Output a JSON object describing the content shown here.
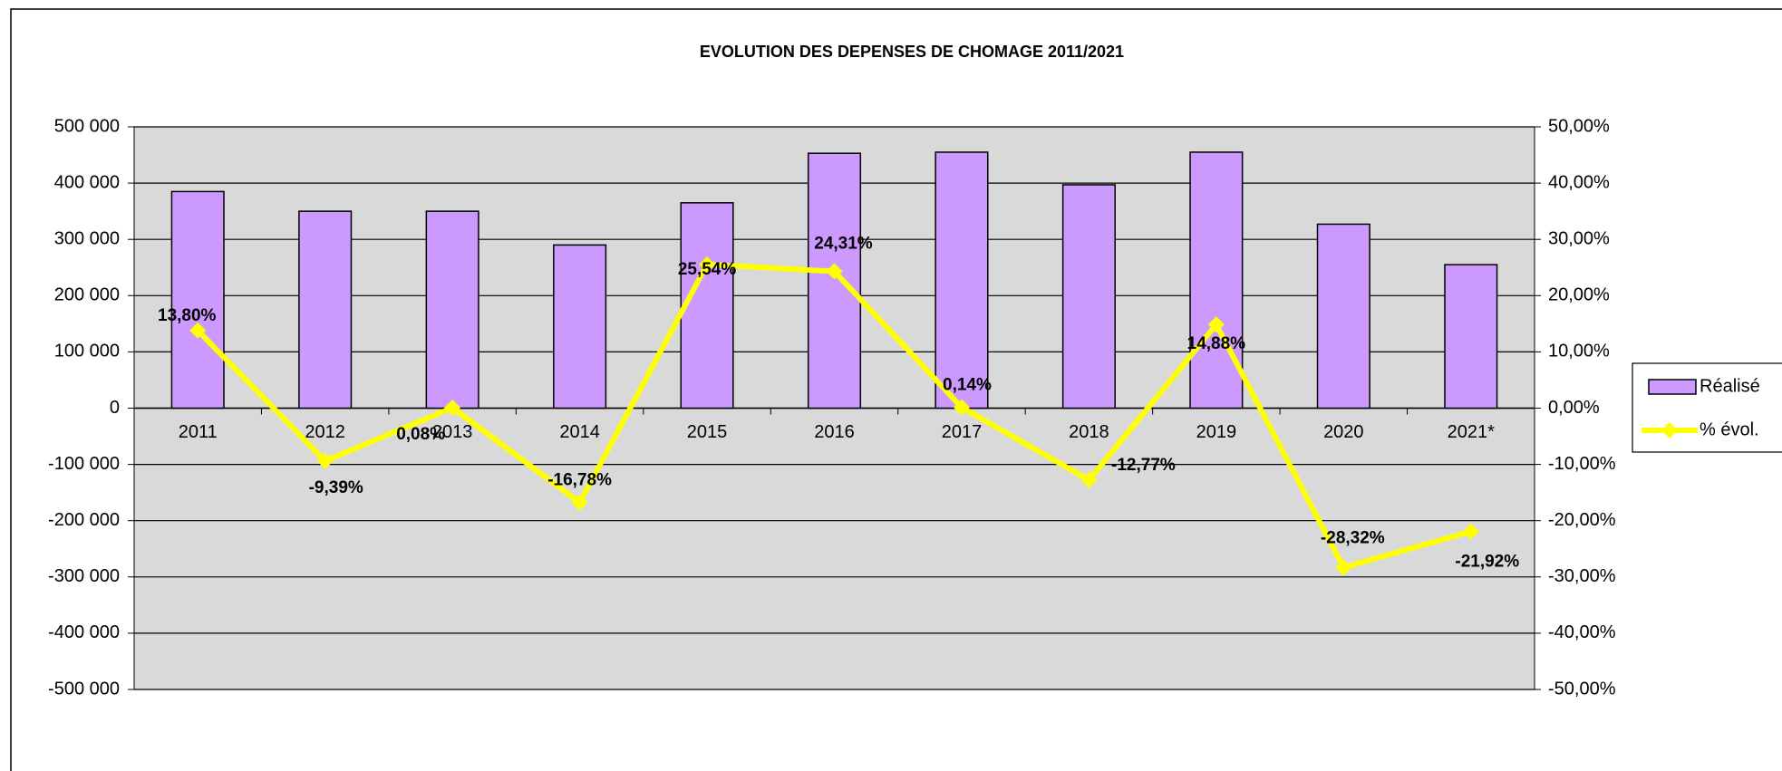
{
  "chart_data": {
    "type": "bar",
    "title": "EVOLUTION DES DEPENSES DE CHOMAGE 2011/2021",
    "categories": [
      "2011",
      "2012",
      "2013",
      "2014",
      "2015",
      "2016",
      "2017",
      "2018",
      "2019",
      "2020",
      "2021*"
    ],
    "series": [
      {
        "name": "Réalisé",
        "type": "bar",
        "color": "#cc99ff",
        "values": [
          385000,
          350000,
          350000,
          290000,
          365000,
          453000,
          455000,
          397000,
          455000,
          327000,
          255000
        ]
      },
      {
        "name": "% évol.",
        "type": "line",
        "axis": "y2",
        "color": "#ffff00",
        "values": [
          13.8,
          -9.39,
          0.08,
          -16.78,
          25.54,
          24.31,
          0.14,
          -12.77,
          14.88,
          -28.32,
          -21.92
        ],
        "value_labels": [
          "13,80%",
          "-9,39%",
          "0,08%",
          "-16,78%",
          "25,54%",
          "24,31%",
          "0,14%",
          "-12,77%",
          "14,88%",
          "-28,32%",
          "-21,92%"
        ]
      }
    ],
    "ylim": [
      -500000,
      500000
    ],
    "yticks": [
      {
        "value": -500000,
        "label": "-500 000"
      },
      {
        "value": -400000,
        "label": "-400 000"
      },
      {
        "value": -300000,
        "label": "-300 000"
      },
      {
        "value": -200000,
        "label": "-200 000"
      },
      {
        "value": -100000,
        "label": "-100 000"
      },
      0,
      {
        "value": 100000,
        "label": "100 000"
      },
      {
        "value": 200000,
        "label": "200 000"
      },
      {
        "value": 300000,
        "label": "300 000"
      },
      {
        "value": 400000,
        "label": "400 000"
      },
      {
        "value": 500000,
        "label": "500 000"
      }
    ],
    "y2lim": [
      -50,
      50
    ],
    "y2ticks": [
      {
        "value": -50,
        "label": "-50,00%"
      },
      {
        "value": -40,
        "label": "-40,00%"
      },
      {
        "value": -30,
        "label": "-30,00%"
      },
      {
        "value": -20,
        "label": "-20,00%"
      },
      {
        "value": -10,
        "label": "-10,00%"
      },
      {
        "value": 0,
        "label": "0,00%"
      },
      {
        "value": 10,
        "label": "10,00%"
      },
      {
        "value": 20,
        "label": "20,00%"
      },
      {
        "value": 30,
        "label": "30,00%"
      },
      {
        "value": 40,
        "label": "40,00%"
      },
      {
        "value": 50,
        "label": "50,00%"
      }
    ],
    "grid": true,
    "legend": "right"
  }
}
